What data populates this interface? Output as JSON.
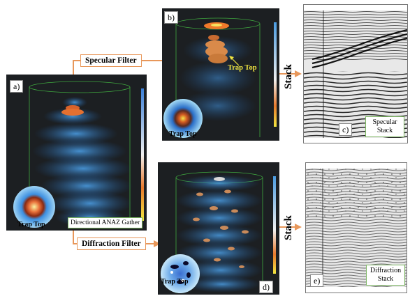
{
  "panels": {
    "a": {
      "label": "a)",
      "trap_label": "Trap Top",
      "caption": "Directional ANAZ Gather"
    },
    "b": {
      "label": "b)",
      "trap_label": "Trap Top",
      "annotation": "Trap Top"
    },
    "c": {
      "label": "c)",
      "caption_line1": "Specular",
      "caption_line2": "Stack"
    },
    "d": {
      "label": "d)",
      "trap_label": "Trap Top"
    },
    "e": {
      "label": "e)",
      "caption_line1": "Diffraction",
      "caption_line2": "Stack"
    }
  },
  "filters": {
    "specular": "Specular Filter",
    "diffraction": "Diffraction Filter"
  },
  "stack_labels": {
    "top": "Stack",
    "bottom": "Stack"
  },
  "colors": {
    "arrow": "#e8975a",
    "volume_bg": "#1a1d1f",
    "wireframe": "#3fa83f",
    "caption_border": "#7bb661"
  }
}
